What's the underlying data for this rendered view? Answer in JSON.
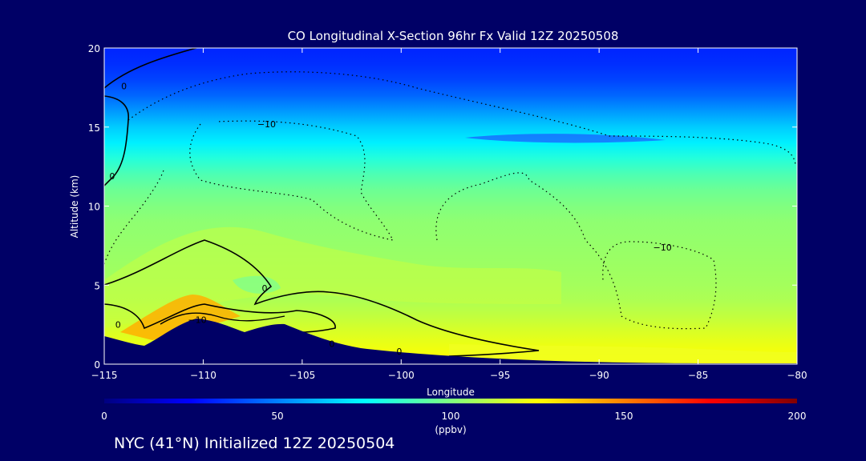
{
  "chart_data": {
    "type": "heatmap",
    "title": "CO Longitudinal X-Section 96hr  Fx Valid 12Z 20250508",
    "xlabel": "Longitude",
    "ylabel": "Altitude (km)",
    "xlim": [
      -115,
      -80
    ],
    "ylim": [
      0,
      20
    ],
    "xticks": [
      -115,
      -110,
      -105,
      -100,
      -95,
      -90,
      -85,
      -80
    ],
    "xtick_labels": [
      "−115",
      "−110",
      "−105",
      "−100",
      "−95",
      "−90",
      "−85",
      "−80"
    ],
    "yticks": [
      0,
      5,
      10,
      15,
      20
    ],
    "ytick_labels": [
      "0",
      "5",
      "10",
      "15",
      "20"
    ],
    "colorbar": {
      "min": 0,
      "max": 200,
      "ticks": [
        0,
        50,
        100,
        150,
        200
      ],
      "tick_labels": [
        "0",
        "50",
        "100",
        "150",
        "200"
      ],
      "units": "(ppbv)",
      "colors": [
        "#000080",
        "#0000ff",
        "#0080ff",
        "#00ffff",
        "#80ff80",
        "#ffff00",
        "#ff8000",
        "#ff0000",
        "#800000"
      ]
    },
    "field_profile": {
      "altitude_km": [
        0,
        1,
        2,
        3,
        4,
        5,
        6,
        7,
        8,
        9,
        10,
        11,
        12,
        13,
        14,
        15,
        16,
        17,
        18,
        19,
        20
      ],
      "co_ppbv": [
        125,
        122,
        118,
        113,
        109,
        107,
        106,
        105,
        104,
        103,
        100,
        96,
        90,
        82,
        72,
        65,
        55,
        45,
        38,
        34,
        32
      ]
    },
    "contour_labels": [
      {
        "text": "0",
        "lon": -114,
        "alt": 17.6
      },
      {
        "text": "−10",
        "lon": -106.8,
        "alt": 15.2
      },
      {
        "text": "0",
        "lon": -114.6,
        "alt": 11.9
      },
      {
        "text": "0",
        "lon": -106.9,
        "alt": 4.8
      },
      {
        "text": "−10",
        "lon": -110.3,
        "alt": 2.8
      },
      {
        "text": "0",
        "lon": -114.3,
        "alt": 2.5
      },
      {
        "text": "0",
        "lon": -103.5,
        "alt": 1.3
      },
      {
        "text": "0",
        "lon": -100.1,
        "alt": 0.8
      },
      {
        "text": "−10",
        "lon": -86.8,
        "alt": 7.4
      }
    ]
  },
  "footer_text": "NYC (41°N) Initialized 12Z 20250504"
}
